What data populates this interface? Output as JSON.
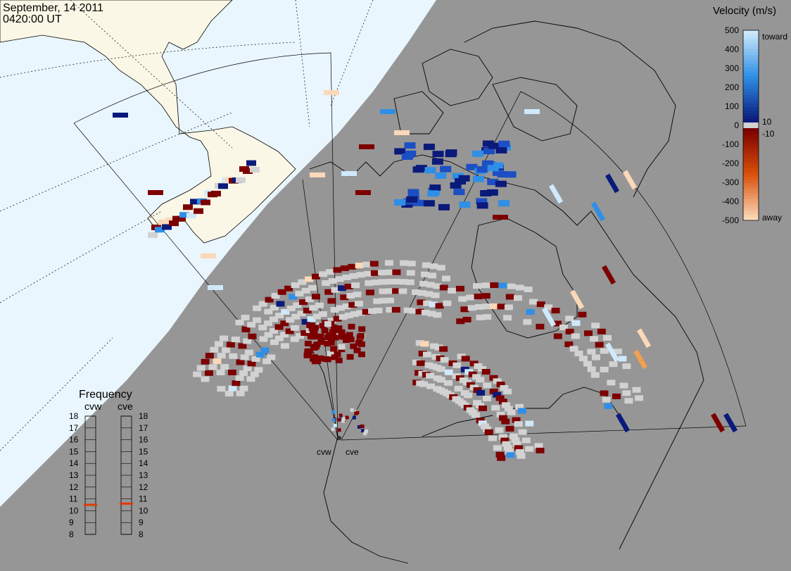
{
  "header": {
    "date": "September, 14 2011",
    "time": "0420:00 UT"
  },
  "velocity_legend": {
    "title": "Velocity (m/s)",
    "toward_label": "toward",
    "away_label": "away",
    "ticks": [
      "500",
      "400",
      "300",
      "200",
      "100",
      "0",
      "-100",
      "-200",
      "-300",
      "-400",
      "-500"
    ],
    "small_pos": "10",
    "small_neg": "-10",
    "colors": {
      "toward_light": "#cfe9fb",
      "toward_mid": "#2f8fe6",
      "toward_dark": "#0a1a7a",
      "ground_scatter": "#d2d2d2",
      "away_dark": "#7d0000",
      "away_mid": "#d8500a",
      "away_light": "#fbd8b8"
    }
  },
  "frequency_panel": {
    "title": "Frequency",
    "radars": [
      {
        "name": "cvw",
        "value_mhz": 10.5
      },
      {
        "name": "cve",
        "value_mhz": 10.6
      }
    ],
    "scale": [
      "18",
      "17",
      "16",
      "15",
      "14",
      "13",
      "12",
      "11",
      "10",
      "9",
      "8"
    ],
    "marker_color": "#e03a00"
  },
  "map": {
    "night_color": "#969696",
    "land_day": "#faf7e6",
    "ocean_day": "#e9f6fd",
    "scatter_color": "#d2d2d2",
    "radar_labels": [
      "cvw",
      "cve"
    ]
  }
}
